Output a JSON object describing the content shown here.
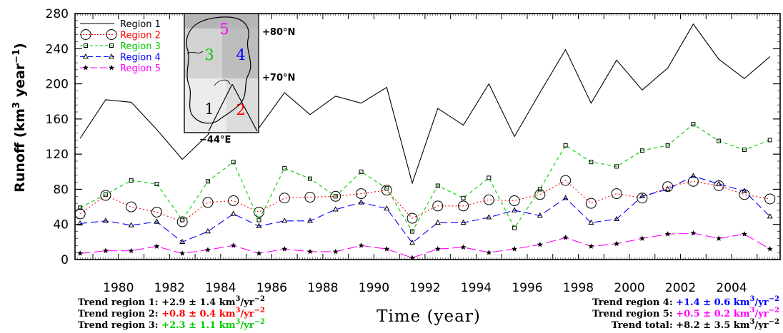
{
  "chart_data": {
    "type": "line",
    "xlabel": "Time (year)",
    "ylabel": "Runoff (km",
    "ylabel_sup1": "3",
    "ylabel_mid": " year",
    "ylabel_sup2": "−1",
    "ylabel_end": ")",
    "xlim": [
      1978.3,
      2005.9
    ],
    "ylim": [
      0,
      280
    ],
    "x_ticks": [
      1980,
      1982,
      1984,
      1986,
      1988,
      1990,
      1992,
      1994,
      1996,
      1998,
      2000,
      2002,
      2004
    ],
    "y_ticks": [
      0,
      40,
      80,
      120,
      160,
      200,
      240,
      280
    ],
    "grid": false,
    "legend_position": "top-left",
    "x": [
      1978.5,
      1979.5,
      1980.5,
      1981.5,
      1982.5,
      1983.5,
      1984.5,
      1985.5,
      1986.5,
      1987.5,
      1988.5,
      1989.5,
      1990.5,
      1991.5,
      1992.5,
      1993.5,
      1994.5,
      1995.5,
      1996.5,
      1997.5,
      1998.5,
      1999.5,
      2000.5,
      2001.5,
      2002.5,
      2003.5,
      2004.5,
      2005.5
    ],
    "series": [
      {
        "name": "Region 1",
        "color": "#000000",
        "dash": "",
        "marker": "none",
        "values": [
          138,
          182,
          179,
          148,
          114,
          142,
          178,
          150,
          190,
          165,
          186,
          178,
          196,
          87,
          172,
          153,
          200,
          140,
          190,
          239,
          178,
          227,
          193,
          218,
          268,
          228,
          206,
          231
        ]
      },
      {
        "name": "Region 2",
        "color": "#ff0000",
        "dash": "2,3",
        "marker": "circle",
        "values": [
          52,
          73,
          60,
          54,
          43,
          65,
          67,
          54,
          70,
          71,
          72,
          75,
          79,
          47,
          61,
          61,
          68,
          67,
          74,
          90,
          64,
          75,
          70,
          83,
          89,
          84,
          74,
          69
        ]
      },
      {
        "name": "Region 3",
        "color": "#00cc00",
        "dash": "5,4",
        "marker": "square",
        "values": [
          59,
          74,
          90,
          86,
          45,
          89,
          111,
          45,
          104,
          92,
          72,
          100,
          81,
          32,
          84,
          70,
          93,
          36,
          80,
          130,
          111,
          106,
          124,
          130,
          154,
          135,
          125,
          136
        ]
      },
      {
        "name": "Region 4",
        "color": "#0000ff",
        "dash": "10,5",
        "marker": "triangle",
        "values": [
          41,
          44,
          39,
          43,
          20,
          32,
          52,
          38,
          44,
          44,
          57,
          65,
          58,
          19,
          42,
          42,
          48,
          56,
          50,
          70,
          42,
          46,
          72,
          80,
          95,
          86,
          78,
          49
        ]
      },
      {
        "name": "Region 5",
        "color": "#ff00ff",
        "dash": "14,5",
        "marker": "star",
        "values": [
          7,
          10,
          10,
          15,
          7,
          11,
          16,
          7,
          12,
          9,
          9,
          16,
          12,
          2,
          12,
          14,
          8,
          12,
          17,
          25,
          15,
          18,
          24,
          29,
          30,
          24,
          29,
          12
        ]
      }
    ]
  },
  "inset_map": {
    "labels": {
      "lat80": "+80°N",
      "lat70": "+70°N",
      "lon": "−44°E"
    },
    "regions": [
      {
        "num": "1",
        "color": "#000000"
      },
      {
        "num": "2",
        "color": "#ff0000"
      },
      {
        "num": "3",
        "color": "#00cc00"
      },
      {
        "num": "4",
        "color": "#0000ff"
      },
      {
        "num": "5",
        "color": "#ff00ff"
      }
    ]
  },
  "trends": {
    "left": [
      {
        "label": "Trend region 1: ",
        "value": "+2.9 ± 1.4 km",
        "sup": "3",
        "unit": "/yr",
        "unit_sup": "−2",
        "color": "#000000"
      },
      {
        "label": "Trend region 2: ",
        "value": "+0.8 ± 0.4 km",
        "sup": "3",
        "unit": "/yr",
        "unit_sup": "−2",
        "color": "#ff0000"
      },
      {
        "label": "Trend region 3: ",
        "value": "+2.3 ± 1.1 km",
        "sup": "3",
        "unit": "/yr",
        "unit_sup": "−2",
        "color": "#00cc00"
      }
    ],
    "right": [
      {
        "label": "Trend region 4: ",
        "value": "+1.4 ± 0.6 km",
        "sup": "3",
        "unit": "/yr",
        "unit_sup": "−2",
        "color": "#0000ff"
      },
      {
        "label": "Trend region 5: ",
        "value": "+0.5 ± 0.2 km",
        "sup": "3",
        "unit": "/yr",
        "unit_sup": "−2",
        "color": "#ff00ff"
      },
      {
        "label": "Trend total: ",
        "value": "+8.2 ± 3.5 km",
        "sup": "3",
        "unit": "/yr",
        "unit_sup": "−2",
        "color": "#000000"
      }
    ]
  }
}
